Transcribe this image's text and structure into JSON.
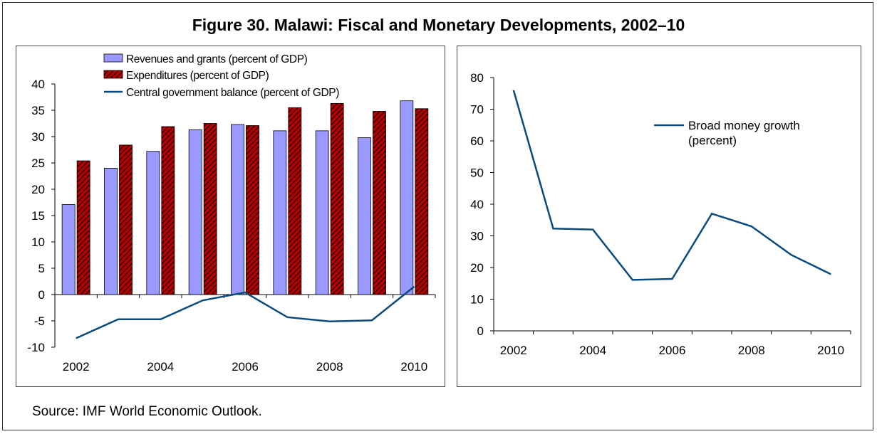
{
  "figure": {
    "title": "Figure 30. Malawi: Fiscal and Monetary Developments, 2002–10",
    "source": "Source: IMF World Economic Outlook."
  },
  "colors": {
    "revenue_fill": "#9999ff",
    "expenditure_fill": "#b30000",
    "expenditure_hatch": "#000000",
    "balance_line": "#0b4a7d",
    "money_line": "#0b4a7d"
  },
  "chart_data": [
    {
      "type": "bar",
      "categories": [
        "2002",
        "2003",
        "2004",
        "2005",
        "2006",
        "2007",
        "2008",
        "2009",
        "2010"
      ],
      "x_tick_labels": [
        "2002",
        "",
        "2004",
        "",
        "2006",
        "",
        "2008",
        "",
        "2010"
      ],
      "series": [
        {
          "name": "Revenues and grants (percent of GDP)",
          "kind": "bar",
          "values": [
            17.1,
            24.0,
            27.2,
            31.3,
            32.3,
            31.1,
            31.1,
            29.8,
            36.8
          ]
        },
        {
          "name": "Expenditures (percent of GDP)",
          "kind": "bar",
          "values": [
            25.4,
            28.4,
            31.9,
            32.5,
            32.1,
            35.5,
            36.3,
            34.8,
            35.3
          ]
        },
        {
          "name": "Central government balance (percent of GDP)",
          "kind": "line",
          "values": [
            -8.3,
            -4.7,
            -4.7,
            -1.1,
            0.4,
            -4.3,
            -5.1,
            -4.9,
            1.5
          ]
        }
      ],
      "ylim": [
        -10,
        40
      ],
      "yticks": [
        -10,
        -5,
        0,
        5,
        10,
        15,
        20,
        25,
        30,
        35,
        40
      ],
      "legend": "top-left",
      "grid": false
    },
    {
      "type": "line",
      "categories": [
        "2002",
        "2003",
        "2004",
        "2005",
        "2006",
        "2007",
        "2008",
        "2009",
        "2010"
      ],
      "x_tick_labels": [
        "2002",
        "",
        "2004",
        "",
        "2006",
        "",
        "2008",
        "",
        "2010"
      ],
      "series": [
        {
          "name": "Broad money growth (percent)",
          "legend_lines": [
            "Broad money growth",
            "(percent)"
          ],
          "values": [
            76.0,
            32.3,
            32.0,
            16.1,
            16.4,
            37.0,
            33.0,
            24.0,
            17.9
          ]
        }
      ],
      "ylim": [
        0,
        80
      ],
      "yticks": [
        0,
        10,
        20,
        30,
        40,
        50,
        60,
        70,
        80
      ],
      "legend": "top-right",
      "grid": false
    }
  ]
}
